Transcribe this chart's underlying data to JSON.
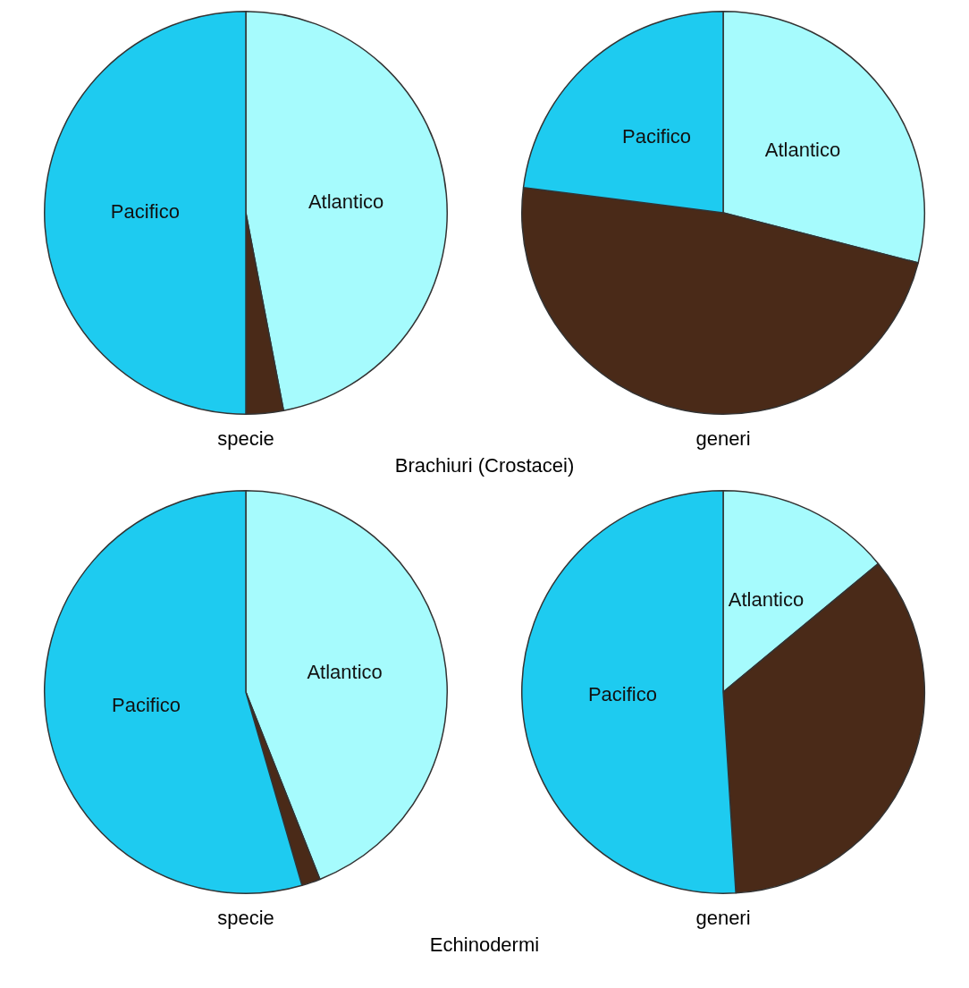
{
  "chart_data": [
    {
      "type": "pie",
      "xlabel": "specie",
      "annotations": [
        "Brachiuri (Crostacei)"
      ],
      "categories": [
        "Atlantico",
        null,
        "Pacifico"
      ],
      "values": [
        47,
        3,
        50
      ],
      "colors": [
        "#a6fbfd",
        "#4a2a18",
        "#1ecbf0"
      ],
      "legend": false
    },
    {
      "type": "pie",
      "xlabel": "generi",
      "categories": [
        "Atlantico",
        null,
        "Pacifico"
      ],
      "values": [
        29,
        48,
        23
      ],
      "colors": [
        "#a6fbfd",
        "#4a2a18",
        "#1ecbf0"
      ],
      "legend": false
    },
    {
      "type": "pie",
      "xlabel": "specie",
      "annotations": [
        "Echinodermi"
      ],
      "categories": [
        "Atlantico",
        null,
        "Pacifico"
      ],
      "values": [
        44,
        1.5,
        54.5
      ],
      "colors": [
        "#a6fbfd",
        "#4a2a18",
        "#1ecbf0"
      ],
      "legend": false
    },
    {
      "type": "pie",
      "xlabel": "generi",
      "categories": [
        "Atlantico",
        null,
        "Pacifico"
      ],
      "values": [
        14,
        35,
        51
      ],
      "colors": [
        "#a6fbfd",
        "#4a2a18",
        "#1ecbf0"
      ],
      "legend": false
    }
  ]
}
